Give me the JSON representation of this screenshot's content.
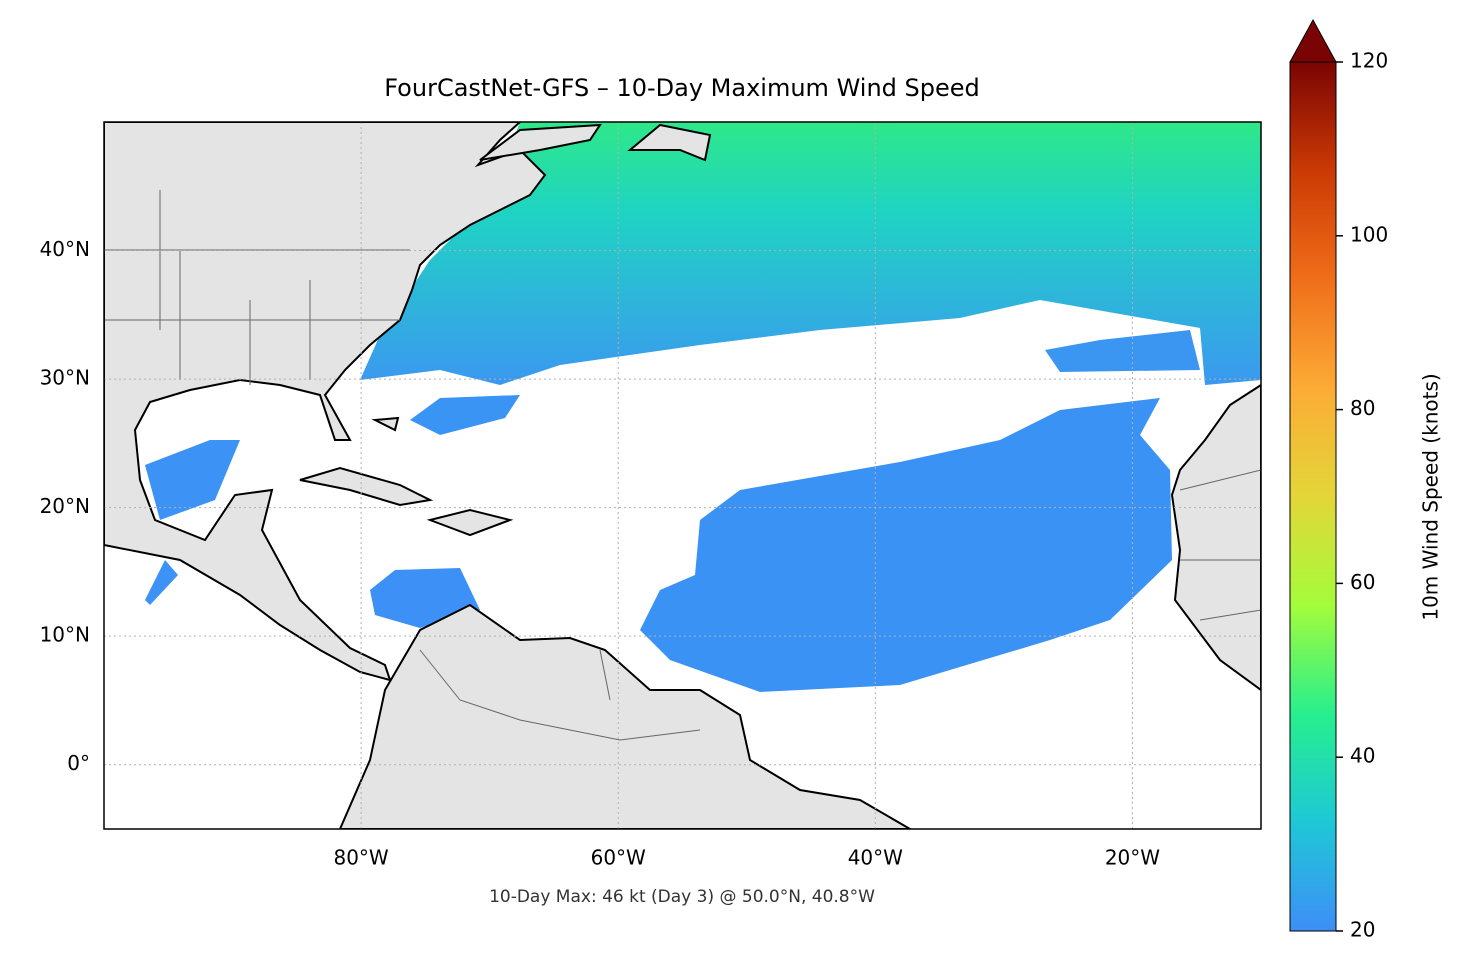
{
  "chart_data": {
    "type": "map",
    "title": "FourCastNet-GFS – 10-Day Maximum Wind Speed",
    "annotation": "10-Day Max: 46 kt (Day 3) @ 50.0°N, 40.8°W",
    "xlim": [
      -100,
      -10
    ],
    "ylim": [
      -5,
      50
    ],
    "xticks": [
      {
        "value": -80,
        "label": "80°W"
      },
      {
        "value": -60,
        "label": "60°W"
      },
      {
        "value": -40,
        "label": "40°W"
      },
      {
        "value": -20,
        "label": "20°W"
      }
    ],
    "yticks": [
      {
        "value": 0,
        "label": "0°"
      },
      {
        "value": 10,
        "label": "10°N"
      },
      {
        "value": 20,
        "label": "20°N"
      },
      {
        "value": 30,
        "label": "30°N"
      },
      {
        "value": 40,
        "label": "40°N"
      }
    ],
    "grid": true,
    "colorbar": {
      "label": "10m Wind Speed (knots)",
      "lim": [
        20,
        120
      ],
      "ticks": [
        20,
        40,
        60,
        80,
        100,
        120
      ],
      "colors": [
        "#3e8ef7",
        "#1ec8d6",
        "#27ef8d",
        "#a4fc3b",
        "#e3d638",
        "#fcab35",
        "#f06e1a",
        "#cb3a05",
        "#7a0403"
      ]
    }
  }
}
